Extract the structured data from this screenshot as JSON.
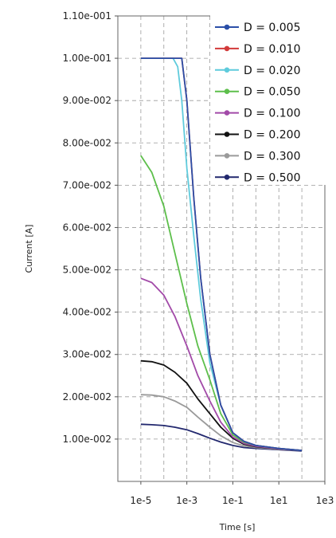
{
  "chart_data": {
    "type": "line",
    "title": "",
    "xlabel": "Time [s]",
    "ylabel": "Current [A]",
    "x_scale": "log",
    "xlim": [
      1e-06,
      1000
    ],
    "ylim": [
      0,
      0.11
    ],
    "grid": true,
    "legend_position": "top-right",
    "x_ticks": [
      {
        "value": 1e-05,
        "label": "1e-5"
      },
      {
        "value": 0.001,
        "label": "1e-3"
      },
      {
        "value": 0.1,
        "label": "1e-1"
      },
      {
        "value": 10,
        "label": "1e1"
      },
      {
        "value": 1000,
        "label": "1e3"
      }
    ],
    "y_ticks": [
      {
        "value": 0.01,
        "label": "1.00e-002"
      },
      {
        "value": 0.02,
        "label": "2.00e-002"
      },
      {
        "value": 0.03,
        "label": "3.00e-002"
      },
      {
        "value": 0.04,
        "label": "4.00e-002"
      },
      {
        "value": 0.05,
        "label": "5.00e-002"
      },
      {
        "value": 0.06,
        "label": "6.00e-002"
      },
      {
        "value": 0.07,
        "label": "7.00e-002"
      },
      {
        "value": 0.08,
        "label": "8.00e-002"
      },
      {
        "value": 0.09,
        "label": "9.00e-002"
      },
      {
        "value": 0.1,
        "label": "1.00e-001"
      },
      {
        "value": 0.11,
        "label": "1.10e-001"
      }
    ],
    "series": [
      {
        "name": "D = 0.005",
        "color": "#2b4fa8",
        "x": [
          1e-05,
          0.0003,
          0.00045,
          0.0006,
          0.001,
          0.002,
          0.004,
          0.01,
          0.03,
          0.1,
          0.3,
          1,
          10,
          100
        ],
        "y": [
          0.1,
          0.1,
          0.1,
          0.1,
          0.09,
          0.067,
          0.048,
          0.03,
          0.018,
          0.0115,
          0.0095,
          0.0085,
          0.0078,
          0.0073
        ]
      },
      {
        "name": "D = 0.010",
        "color": "#d23a3a",
        "x": [
          1e-05,
          0.0003,
          0.00045,
          0.0006,
          0.001,
          0.002,
          0.004,
          0.01,
          0.03,
          0.1,
          0.3,
          1,
          10,
          100
        ],
        "y": [
          0.1,
          0.1,
          0.1,
          0.1,
          0.09,
          0.067,
          0.048,
          0.03,
          0.018,
          0.0115,
          0.0095,
          0.0085,
          0.0078,
          0.0073
        ]
      },
      {
        "name": "D = 0.020",
        "color": "#5fcbdc",
        "x": [
          1e-05,
          0.0001,
          0.00025,
          0.0004,
          0.0006,
          0.001,
          0.002,
          0.004,
          0.01,
          0.03,
          0.1,
          0.3,
          1,
          10,
          100
        ],
        "y": [
          0.1,
          0.1,
          0.1,
          0.098,
          0.09,
          0.074,
          0.058,
          0.043,
          0.028,
          0.018,
          0.0115,
          0.0095,
          0.0085,
          0.0078,
          0.0073
        ]
      },
      {
        "name": "D = 0.050",
        "color": "#5dbf4b",
        "x": [
          1e-05,
          3e-05,
          0.0001,
          0.0003,
          0.001,
          0.003,
          0.01,
          0.03,
          0.1,
          0.3,
          1,
          10,
          100
        ],
        "y": [
          0.077,
          0.073,
          0.065,
          0.054,
          0.042,
          0.032,
          0.024,
          0.016,
          0.011,
          0.0093,
          0.0085,
          0.0078,
          0.0073
        ]
      },
      {
        "name": "D = 0.100",
        "color": "#a24aa8",
        "x": [
          1e-05,
          3e-05,
          0.0001,
          0.0003,
          0.001,
          0.003,
          0.01,
          0.03,
          0.1,
          0.3,
          1,
          10,
          100
        ],
        "y": [
          0.048,
          0.047,
          0.044,
          0.039,
          0.032,
          0.025,
          0.019,
          0.014,
          0.0105,
          0.009,
          0.0083,
          0.0077,
          0.0073
        ]
      },
      {
        "name": "D = 0.200",
        "color": "#111111",
        "x": [
          1e-05,
          3e-05,
          0.0001,
          0.0003,
          0.001,
          0.003,
          0.01,
          0.03,
          0.1,
          0.3,
          1,
          10,
          100
        ],
        "y": [
          0.0285,
          0.0283,
          0.0275,
          0.0258,
          0.0232,
          0.0195,
          0.016,
          0.0128,
          0.0102,
          0.0088,
          0.0082,
          0.0077,
          0.0073
        ]
      },
      {
        "name": "D = 0.300",
        "color": "#9a9a9a",
        "x": [
          1e-05,
          3e-05,
          0.0001,
          0.0003,
          0.001,
          0.003,
          0.01,
          0.03,
          0.1,
          0.3,
          1,
          10,
          100
        ],
        "y": [
          0.0205,
          0.0204,
          0.02,
          0.019,
          0.0175,
          0.0152,
          0.0128,
          0.0108,
          0.0092,
          0.0084,
          0.008,
          0.0076,
          0.0073
        ]
      },
      {
        "name": "D = 0.500",
        "color": "#22286e",
        "x": [
          1e-05,
          3e-05,
          0.0001,
          0.0003,
          0.001,
          0.003,
          0.01,
          0.03,
          0.1,
          0.3,
          1,
          10,
          100
        ],
        "y": [
          0.0135,
          0.0134,
          0.0132,
          0.0128,
          0.0122,
          0.0113,
          0.0102,
          0.0093,
          0.0085,
          0.008,
          0.0078,
          0.0075,
          0.0072
        ]
      }
    ]
  }
}
